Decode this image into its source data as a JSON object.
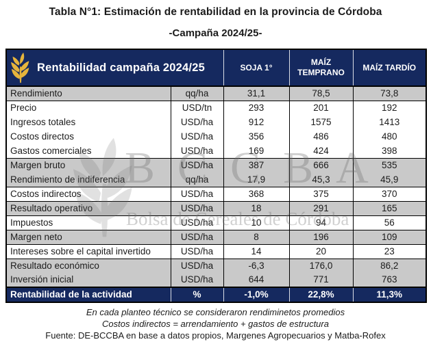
{
  "title": "Tabla N°1: Estimación de rentabilidad en la provincia de Córdoba",
  "subtitle": "-Campaña 2024/25-",
  "colors": {
    "navy": "#15295f",
    "gold": "#e6b43c",
    "grey_row": "#c9c9c9",
    "border": "#000000",
    "watermark_grey": "#6f6f6f"
  },
  "table": {
    "header": {
      "title": "Rentabilidad campaña 2024/25",
      "icon": "wheat-icon",
      "columns": [
        "SOJA 1°",
        "MAÍZ TEMPRANO",
        "MAÍZ TARDÍO"
      ]
    },
    "rows": [
      {
        "label": "Rendimiento",
        "unit": "qq/ha",
        "values": [
          "31,1",
          "78,5",
          "73,8"
        ],
        "shade": "grey",
        "group_end": true
      },
      {
        "label": "Precio",
        "unit": "USD/tn",
        "values": [
          "293",
          "201",
          "192"
        ],
        "shade": "white",
        "group_end": false
      },
      {
        "label": "Ingresos totales",
        "unit": "USD/ha",
        "values": [
          "912",
          "1575",
          "1413"
        ],
        "shade": "white",
        "group_end": false
      },
      {
        "label": "Costos directos",
        "unit": "USD/ha",
        "values": [
          "356",
          "486",
          "480"
        ],
        "shade": "white",
        "group_end": false
      },
      {
        "label": "Gastos comerciales",
        "unit": "USD/ha",
        "values": [
          "169",
          "424",
          "398"
        ],
        "shade": "white",
        "group_end": true
      },
      {
        "label": "Margen bruto",
        "unit": "USD/ha",
        "values": [
          "387",
          "666",
          "535"
        ],
        "shade": "grey",
        "group_end": false
      },
      {
        "label": "Rendimiento de indiferencia",
        "unit": "qq/ha",
        "values": [
          "17,9",
          "45,3",
          "45,9"
        ],
        "shade": "grey",
        "group_end": true
      },
      {
        "label": "Costos indirectos",
        "unit": "USD/ha",
        "values": [
          "368",
          "375",
          "370"
        ],
        "shade": "white",
        "group_end": true
      },
      {
        "label": "Resultado operativo",
        "unit": "USD/ha",
        "values": [
          "18",
          "291",
          "165"
        ],
        "shade": "grey",
        "group_end": true
      },
      {
        "label": "Impuestos",
        "unit": "USD/ha",
        "values": [
          "10",
          "94",
          "56"
        ],
        "shade": "white",
        "group_end": true
      },
      {
        "label": "Margen neto",
        "unit": "USD/ha",
        "values": [
          "8",
          "196",
          "109"
        ],
        "shade": "grey",
        "group_end": true
      },
      {
        "label": "Intereses sobre el capital invertido",
        "unit": "USD/ha",
        "values": [
          "14",
          "20",
          "23"
        ],
        "shade": "white",
        "group_end": true
      },
      {
        "label": "Resultado económico",
        "unit": "USD/ha",
        "values": [
          "-6,3",
          "176,0",
          "86,2"
        ],
        "shade": "grey",
        "group_end": false
      },
      {
        "label": "Inversión inicial",
        "unit": "USD/ha",
        "values": [
          "644",
          "771",
          "763"
        ],
        "shade": "grey",
        "group_end": true
      },
      {
        "label": "Rentabilidad de la actividad",
        "unit": "%",
        "values": [
          "-1,0%",
          "22,8%",
          "11,3%"
        ],
        "shade": "navy",
        "group_end": false
      }
    ]
  },
  "watermark": {
    "acronym": "BCCBA",
    "name": "Bolsa de Cereales de Córdoba"
  },
  "footnotes": [
    "En cada planteo técnico se consideraron rendiminetos promedios",
    "Costos indirectos = arrendamiento + gastos de estructura",
    "Fuente: DE-BCCBA en base a datos propios, Margenes Agropecuarios y Matba-Rofex"
  ]
}
